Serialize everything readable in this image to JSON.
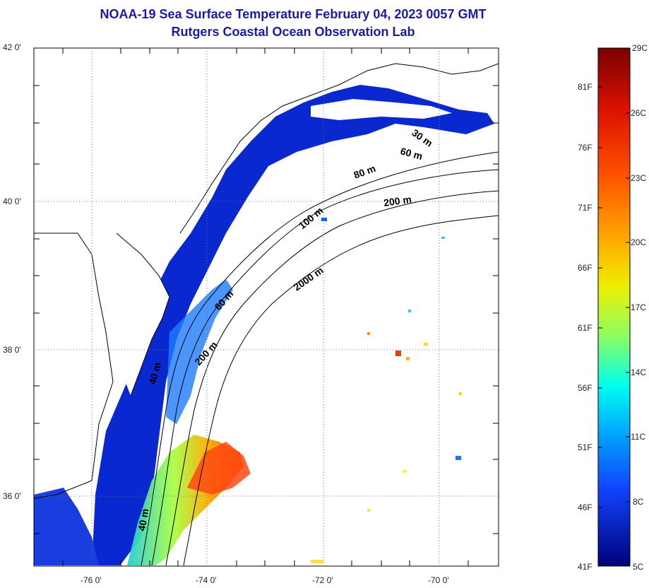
{
  "title": {
    "line1": "NOAA-19 Sea Surface Temperature February 04, 2023 0057 GMT",
    "line2": "Rutgers Coastal Ocean Observation Lab"
  },
  "axes": {
    "lat_ticks": [
      "42 0'",
      "40 0'",
      "38 0'",
      "36 0'"
    ],
    "lon_ticks": [
      "-76 0'",
      "-74 0'",
      "-72 0'",
      "-70 0'"
    ]
  },
  "depth_contours": [
    "30 m",
    "60 m",
    "80 m",
    "200 m",
    "100 m",
    "2000 m",
    "60 m",
    "200 m",
    "40 m",
    "40 m"
  ],
  "colorbar": {
    "celsius": [
      "29C",
      "26C",
      "23C",
      "20C",
      "17C",
      "14C",
      "11C",
      "8C",
      "5C"
    ],
    "fahrenheit": [
      "81F",
      "76F",
      "71F",
      "66F",
      "61F",
      "56F",
      "51F",
      "46F",
      "41F"
    ],
    "colors": [
      "#7a0000",
      "#cc0000",
      "#ff3300",
      "#ff8800",
      "#ffcc00",
      "#ccff33",
      "#66ff99",
      "#00ffee",
      "#00aaff",
      "#0055ff",
      "#0000cc",
      "#00008a"
    ]
  },
  "colors": {
    "title": "#1a1aa6",
    "cold_water": "#0a28d0",
    "warm_water": "#ff6a1a"
  }
}
